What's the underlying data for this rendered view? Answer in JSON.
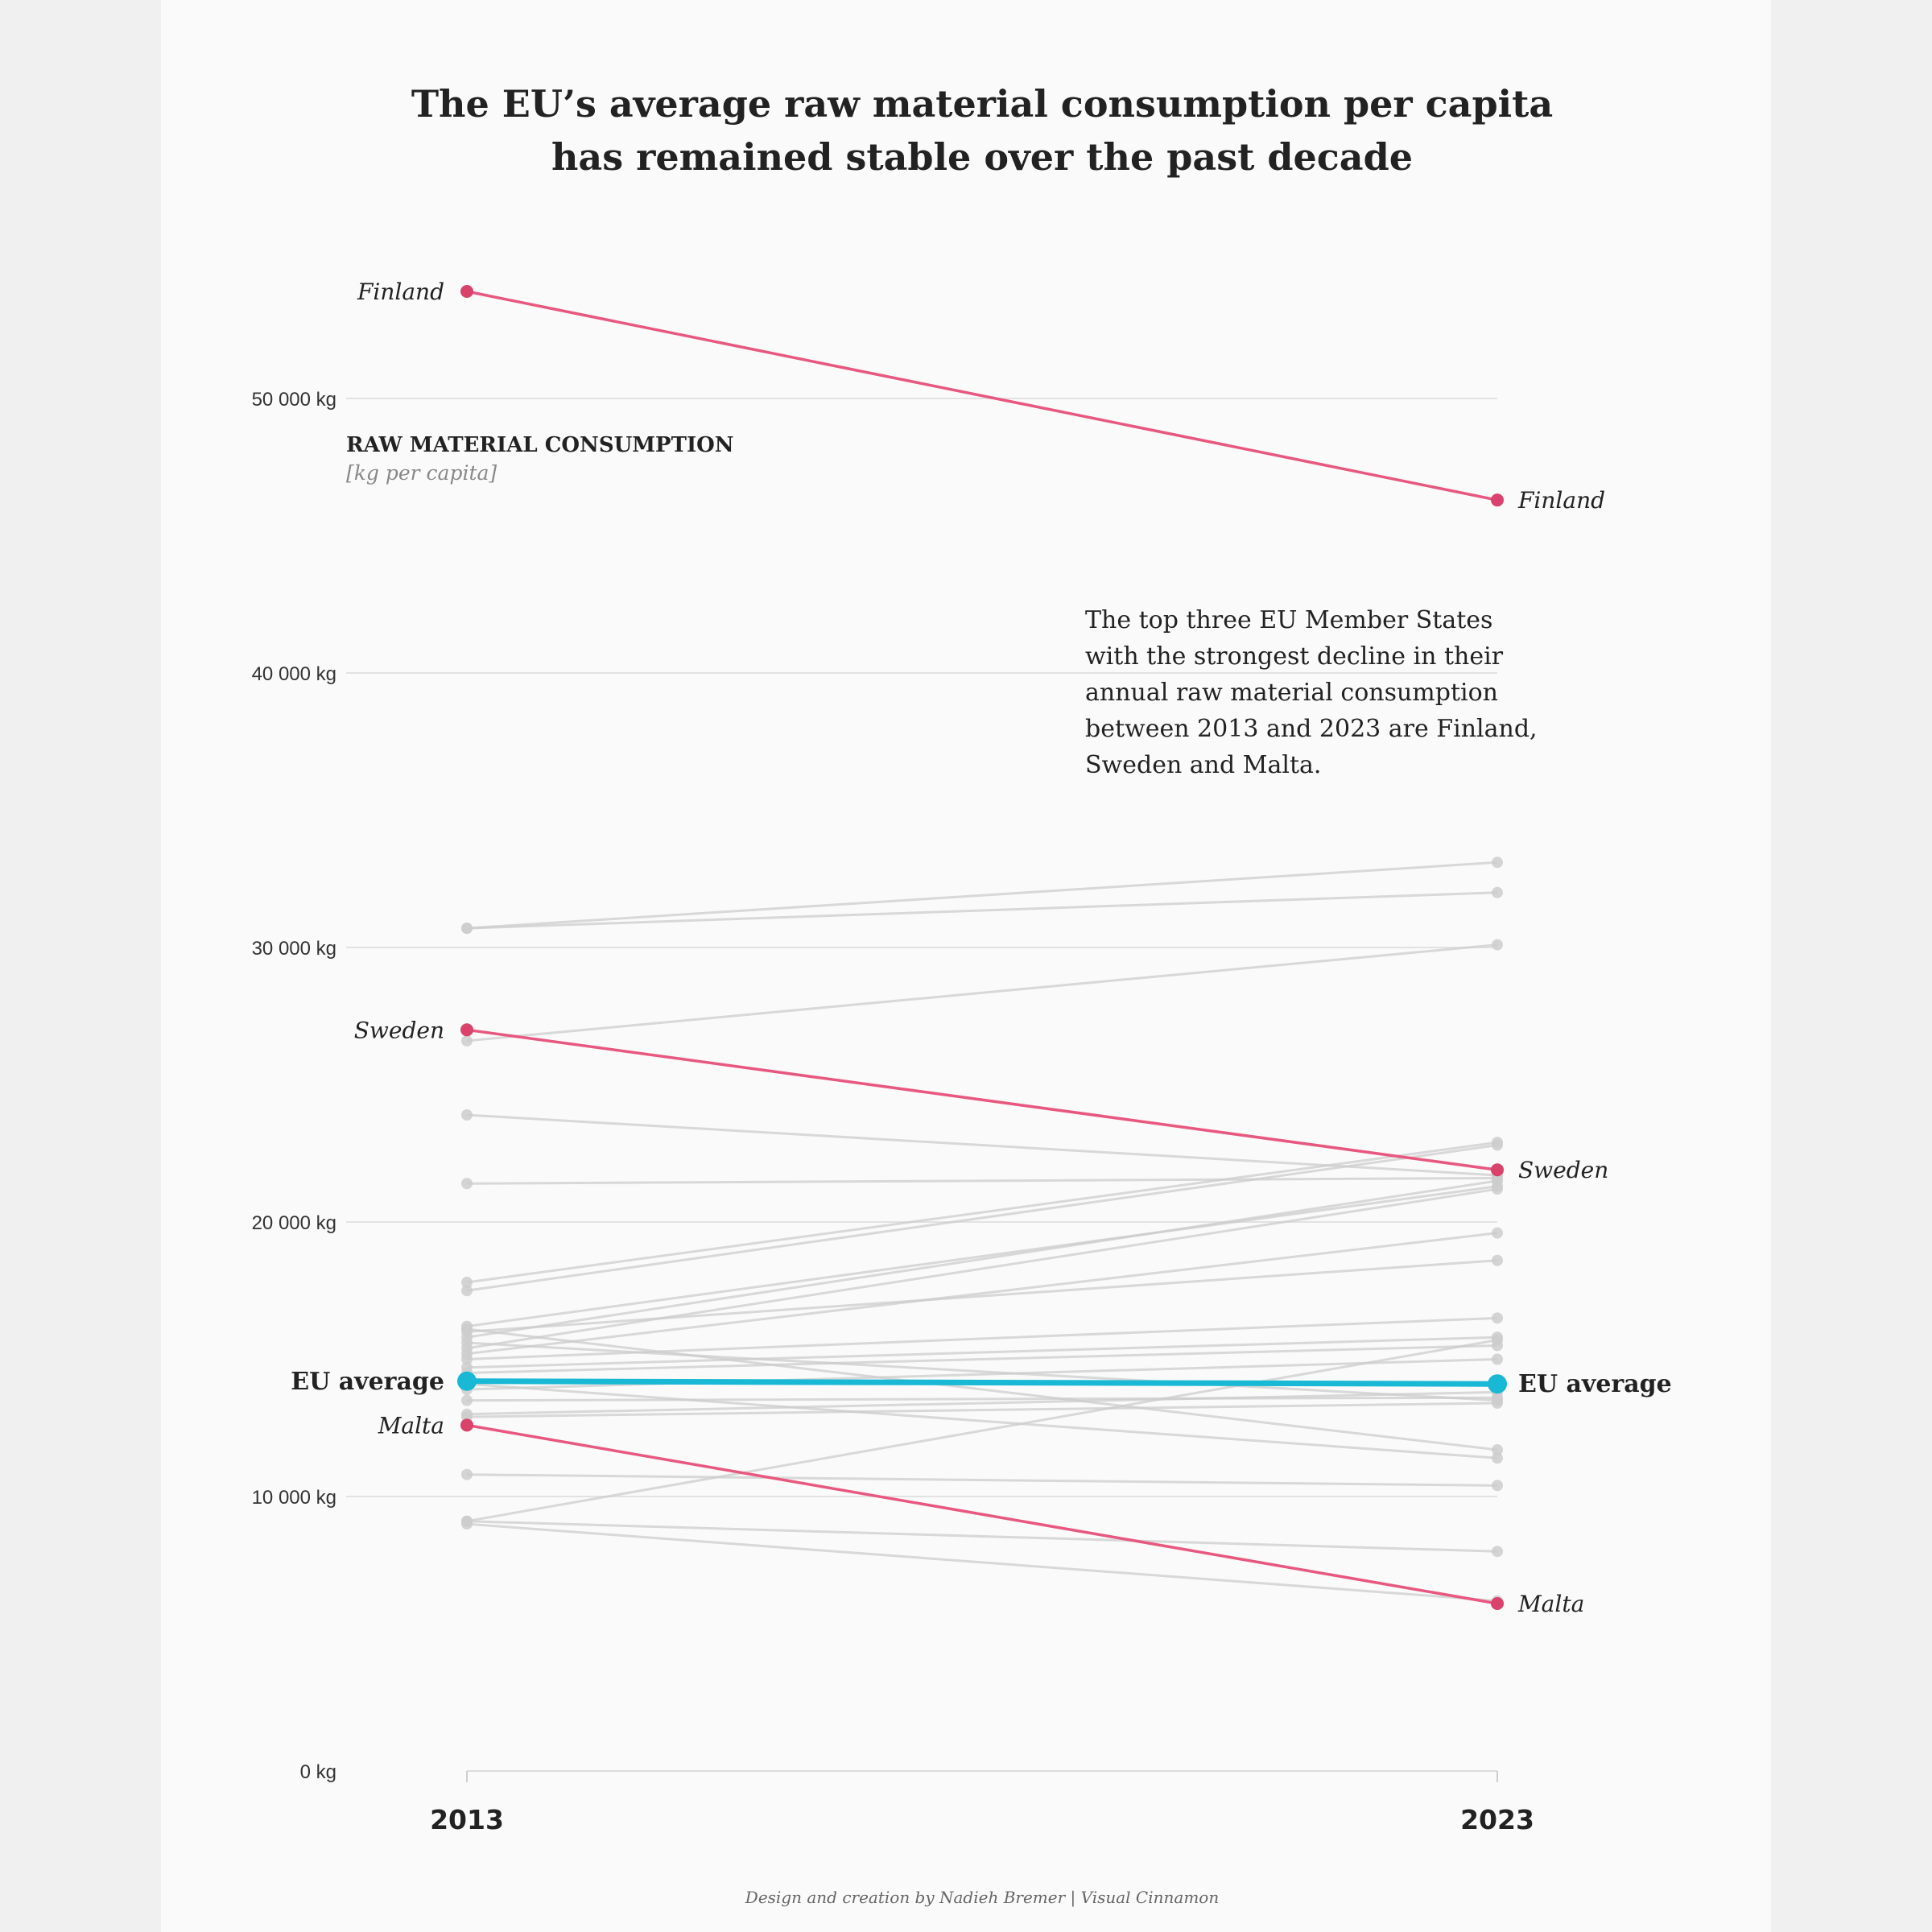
{
  "chart_data": {
    "type": "line",
    "title_lines": [
      "The EU’s average raw material consumption per capita",
      "has remained stable over the past decade"
    ],
    "axis_title": "RAW MATERIAL CONSUMPTION",
    "axis_subtitle": "[kg per capita]",
    "x": [
      "2013",
      "2023"
    ],
    "ylim": [
      0,
      55000
    ],
    "yticks": [
      {
        "value": 0,
        "label": "0 kg"
      },
      {
        "value": 10000,
        "label": "10 000 kg"
      },
      {
        "value": 20000,
        "label": "20 000 kg"
      },
      {
        "value": 30000,
        "label": "30 000 kg"
      },
      {
        "value": 40000,
        "label": "40 000 kg"
      },
      {
        "value": 50000,
        "label": "50 000 kg"
      }
    ],
    "grid": true,
    "highlight_color": "#e8577f",
    "highlight_dot_color": "#d9426b",
    "average_color": "#19b8d4",
    "background_series_color": "#cccccc",
    "highlighted_series": [
      {
        "name": "Finland",
        "values": [
          53900,
          46300
        ]
      },
      {
        "name": "Sweden",
        "values": [
          27000,
          21900
        ]
      },
      {
        "name": "Malta",
        "values": [
          12600,
          6100
        ]
      }
    ],
    "average_series": {
      "name": "EU average",
      "values": [
        14200,
        14100
      ]
    },
    "background_series": [
      [
        30700,
        33100
      ],
      [
        30700,
        32000
      ],
      [
        26600,
        30100
      ],
      [
        23900,
        21700
      ],
      [
        21400,
        21600
      ],
      [
        17800,
        22900
      ],
      [
        17500,
        22800
      ],
      [
        16200,
        21300
      ],
      [
        15800,
        21500
      ],
      [
        15400,
        21200
      ],
      [
        15200,
        19600
      ],
      [
        16000,
        18600
      ],
      [
        15000,
        16500
      ],
      [
        14700,
        15800
      ],
      [
        14500,
        15500
      ],
      [
        13900,
        15000
      ],
      [
        16100,
        11700
      ],
      [
        15600,
        13500
      ],
      [
        13500,
        13600
      ],
      [
        13000,
        13800
      ],
      [
        12900,
        13400
      ],
      [
        14100,
        11400
      ],
      [
        10800,
        10400
      ],
      [
        9100,
        15700
      ],
      [
        9100,
        8000
      ],
      [
        9000,
        6200
      ]
    ],
    "annotation_lines": [
      "The top three EU Member States",
      "with the strongest decline in their",
      "annual raw material consumption",
      "between 2013 and 2023 are Finland,",
      "Sweden and Malta."
    ],
    "credit": "Design and creation by Nadieh Bremer | Visual Cinnamon"
  }
}
